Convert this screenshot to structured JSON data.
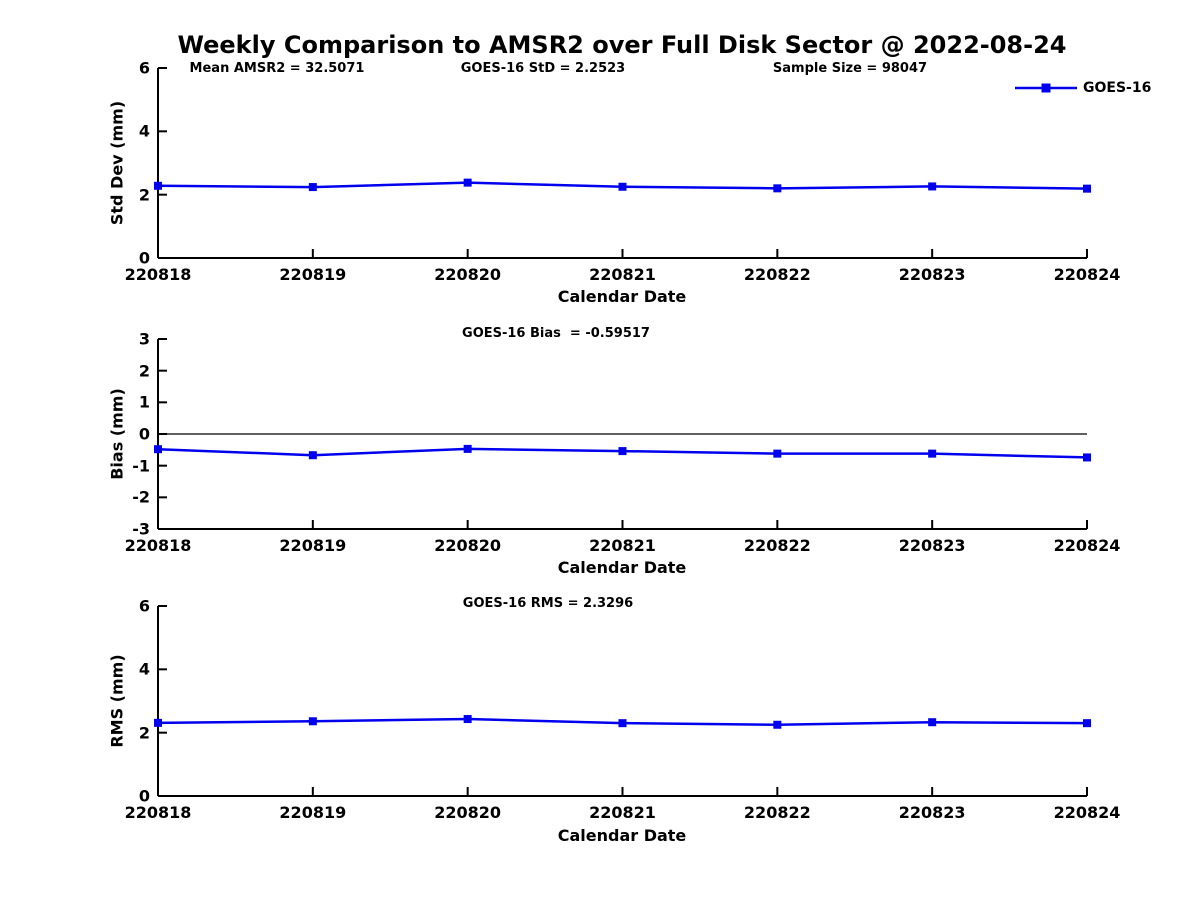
{
  "title": "Weekly Comparison to AMSR2 over Full Disk Sector @ 2022-08-24",
  "legend": {
    "label": "GOES-16"
  },
  "colors": {
    "series": "#0000ee",
    "axis": "#000000",
    "text": "#000000",
    "background": "#ffffff",
    "zero_line": "#000000"
  },
  "chart_data": [
    {
      "type": "line",
      "ylabel": "Std Dev (mm)",
      "xlabel": "Calendar Date",
      "annotations": [
        "Mean AMSR2 = 32.5071",
        "GOES-16 StD = 2.2523",
        "Sample Size = 98047"
      ],
      "categories": [
        "220818",
        "220819",
        "220820",
        "220821",
        "220822",
        "220823",
        "220824"
      ],
      "series": [
        {
          "name": "GOES-16",
          "values": [
            2.28,
            2.24,
            2.38,
            2.25,
            2.2,
            2.26,
            2.19
          ]
        }
      ],
      "ylim": [
        0,
        6
      ],
      "yticks": [
        0,
        2,
        4,
        6
      ],
      "zero_line": false,
      "grid": false,
      "legend_position": "upper right outside plot",
      "marker": "square"
    },
    {
      "type": "line",
      "ylabel": "Bias (mm)",
      "xlabel": "Calendar Date",
      "annotations": [
        "GOES-16 Bias  = -0.59517"
      ],
      "categories": [
        "220818",
        "220819",
        "220820",
        "220821",
        "220822",
        "220823",
        "220824"
      ],
      "series": [
        {
          "name": "GOES-16",
          "values": [
            -0.48,
            -0.67,
            -0.47,
            -0.54,
            -0.62,
            -0.62,
            -0.74
          ]
        }
      ],
      "ylim": [
        -3,
        3
      ],
      "yticks": [
        -3,
        -2,
        -1,
        0,
        1,
        2,
        3
      ],
      "zero_line": true,
      "grid": false,
      "marker": "square"
    },
    {
      "type": "line",
      "ylabel": "RMS (mm)",
      "xlabel": "Calendar Date",
      "annotations": [
        "GOES-16 RMS = 2.3296"
      ],
      "categories": [
        "220818",
        "220819",
        "220820",
        "220821",
        "220822",
        "220823",
        "220824"
      ],
      "series": [
        {
          "name": "GOES-16",
          "values": [
            2.31,
            2.36,
            2.43,
            2.3,
            2.25,
            2.33,
            2.3
          ]
        }
      ],
      "ylim": [
        0,
        6
      ],
      "yticks": [
        0,
        2,
        4,
        6
      ],
      "zero_line": false,
      "grid": false,
      "marker": "square"
    }
  ]
}
